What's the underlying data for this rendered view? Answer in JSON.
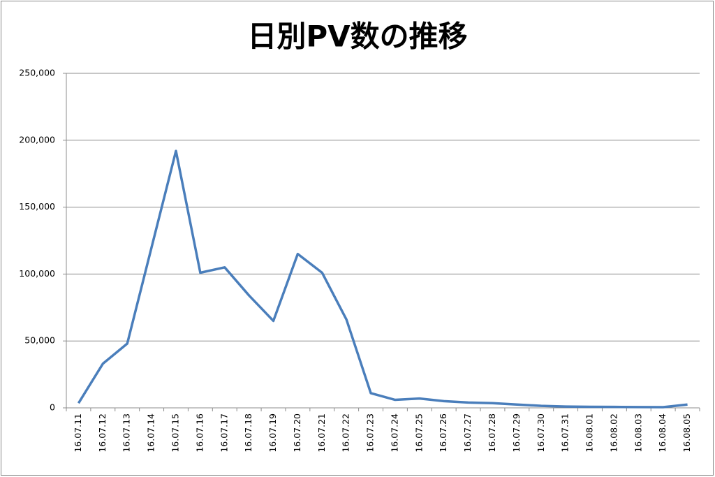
{
  "chart_data": {
    "type": "line",
    "title": "日別PV数の推移",
    "categories": [
      "16.07.11",
      "16.07.12",
      "16.07.13",
      "16.07.14",
      "16.07.15",
      "16.07.16",
      "16.07.17",
      "16.07.18",
      "16.07.19",
      "16.07.20",
      "16.07.21",
      "16.07.22",
      "16.07.23",
      "16.07.24",
      "16.07.25",
      "16.07.26",
      "16.07.27",
      "16.07.28",
      "16.07.29",
      "16.07.30",
      "16.07.31",
      "16.08.01",
      "16.08.02",
      "16.08.03",
      "16.08.04",
      "16.08.05"
    ],
    "values": [
      3500,
      33000,
      48000,
      120000,
      192000,
      101000,
      105000,
      84000,
      65000,
      115000,
      101000,
      66000,
      11000,
      6000,
      7000,
      5000,
      4000,
      3500,
      2500,
      1500,
      1000,
      800,
      700,
      600,
      500,
      2500
    ],
    "color": "#4a7ebb",
    "ylim": [
      0,
      250000
    ],
    "yticks": [
      0,
      {
        "value": 50000,
        "label": "50,000"
      },
      {
        "value": 100000,
        "label": "100,000"
      },
      {
        "value": 150000,
        "label": "150,000"
      },
      {
        "value": 200000,
        "label": "200,000"
      },
      {
        "value": 250000,
        "label": "250,000"
      }
    ],
    "grid": true
  }
}
